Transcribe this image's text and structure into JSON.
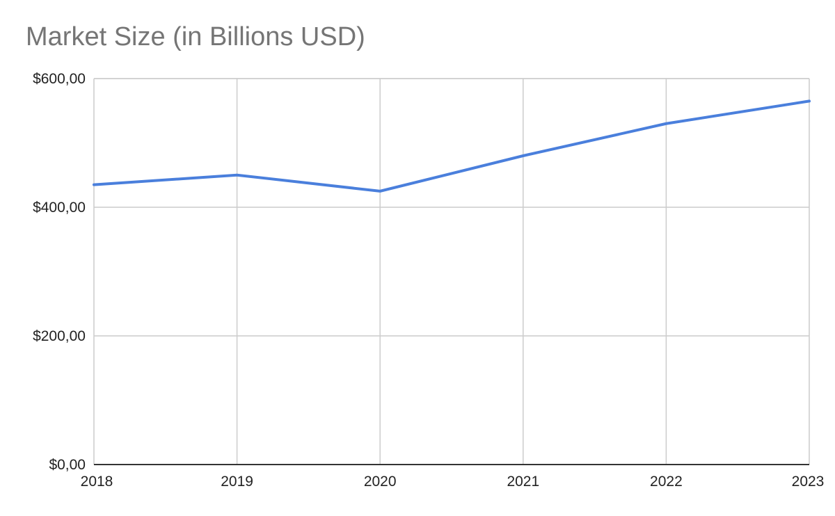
{
  "chart_data": {
    "type": "line",
    "title": "Market Size (in Billions USD)",
    "xlabel": "",
    "ylabel": "",
    "x": [
      "2018",
      "2019",
      "2020",
      "2021",
      "2022",
      "2023"
    ],
    "series": [
      {
        "values": [
          435,
          450,
          425,
          480,
          530,
          565
        ]
      }
    ],
    "ylim": [
      0,
      600
    ],
    "yticks": [
      0,
      200,
      400,
      600
    ],
    "ytick_labels": [
      "$0,00",
      "$200,00",
      "$400,00",
      "$600,00"
    ],
    "grid": true,
    "colors": {
      "line": "#4a7fdc",
      "grid": "#cccccc",
      "axis": "#333333"
    }
  }
}
